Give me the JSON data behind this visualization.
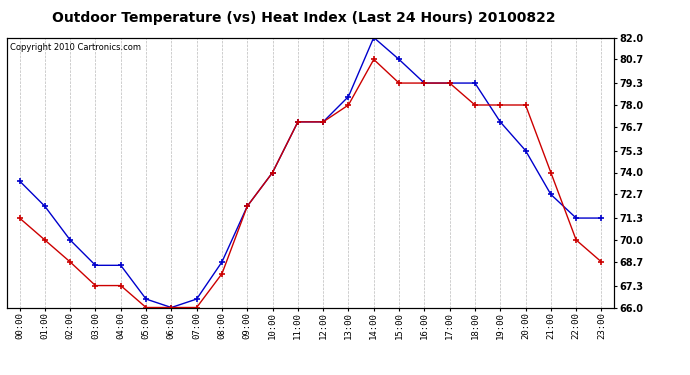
{
  "title": "Outdoor Temperature (vs) Heat Index (Last 24 Hours) 20100822",
  "copyright": "Copyright 2010 Cartronics.com",
  "x_labels": [
    "00:00",
    "01:00",
    "02:00",
    "03:00",
    "04:00",
    "05:00",
    "06:00",
    "07:00",
    "08:00",
    "09:00",
    "10:00",
    "11:00",
    "12:00",
    "13:00",
    "14:00",
    "15:00",
    "16:00",
    "17:00",
    "18:00",
    "19:00",
    "20:00",
    "21:00",
    "22:00",
    "23:00"
  ],
  "blue_data": [
    73.5,
    72.0,
    70.0,
    68.5,
    68.5,
    66.5,
    66.0,
    66.5,
    68.7,
    72.0,
    74.0,
    77.0,
    77.0,
    78.5,
    82.0,
    80.7,
    79.3,
    79.3,
    79.3,
    77.0,
    75.3,
    72.7,
    71.3,
    71.3
  ],
  "red_data": [
    71.3,
    70.0,
    68.7,
    67.3,
    67.3,
    66.0,
    66.0,
    66.0,
    68.0,
    72.0,
    74.0,
    77.0,
    77.0,
    78.0,
    80.7,
    79.3,
    79.3,
    79.3,
    78.0,
    78.0,
    78.0,
    74.0,
    70.0,
    68.7
  ],
  "ylim": [
    66.0,
    82.0
  ],
  "yticks": [
    66.0,
    67.3,
    68.7,
    70.0,
    71.3,
    72.7,
    74.0,
    75.3,
    76.7,
    78.0,
    79.3,
    80.7,
    82.0
  ],
  "blue_color": "#0000cc",
  "red_color": "#cc0000",
  "bg_color": "#ffffff",
  "grid_color": "#bbbbbb",
  "title_fontsize": 10,
  "copyright_fontsize": 6,
  "tick_fontsize": 6.5,
  "ytick_fontsize": 7
}
